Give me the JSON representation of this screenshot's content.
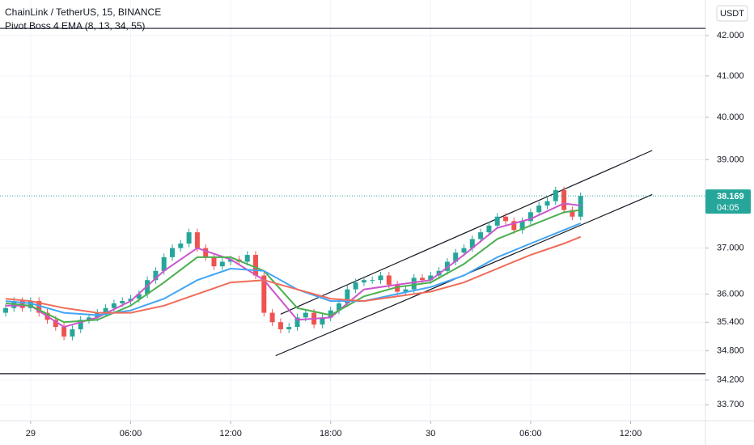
{
  "chart_data": {
    "type": "candlestick",
    "title": "ChainLink / TetherUS, 15, BINANCE",
    "indicator": "Pivot Boss 4 EMA (8, 13, 34, 55)",
    "currency": "USDT",
    "countdown": "04:05",
    "log_scale": true,
    "grid": true,
    "up_color": "#26a69a",
    "down_color": "#ef5350",
    "xlim": [
      -1.84,
      40.49
    ],
    "ylim": [
      33.38,
      42.9
    ],
    "xticks": [
      {
        "value": 0,
        "label": "29"
      },
      {
        "value": 6,
        "label": "06:00"
      },
      {
        "value": 12,
        "label": "12:00"
      },
      {
        "value": 18,
        "label": "18:00"
      },
      {
        "value": 24,
        "label": "30"
      },
      {
        "value": 30,
        "label": "06:00"
      },
      {
        "value": 36,
        "label": "12:00"
      }
    ],
    "yticks": [
      {
        "value": 42,
        "label": "42.000"
      },
      {
        "value": 41,
        "label": "41.000"
      },
      {
        "value": 40,
        "label": "40.000"
      },
      {
        "value": 39,
        "label": "39.000"
      },
      {
        "value": 37,
        "label": "37.000"
      },
      {
        "value": 36,
        "label": "36.000"
      },
      {
        "value": 35.4,
        "label": "35.400"
      },
      {
        "value": 34.8,
        "label": "34.800"
      },
      {
        "value": 34.2,
        "label": "34.200"
      },
      {
        "value": 33.7,
        "label": "33.700"
      }
    ],
    "x": [
      -1.5,
      -1,
      -0.5,
      0,
      0.5,
      1,
      1.5,
      2,
      2.5,
      3,
      3.5,
      4,
      4.5,
      5,
      5.5,
      6,
      6.5,
      7,
      7.5,
      8,
      8.5,
      9,
      9.5,
      10,
      10.5,
      11,
      11.5,
      12,
      12.5,
      13,
      13.5,
      14,
      14.5,
      15,
      15.5,
      16,
      16.5,
      17,
      17.5,
      18,
      18.5,
      19,
      19.5,
      20,
      20.5,
      21,
      21.5,
      22,
      22.5,
      23,
      23.5,
      24,
      24.5,
      25,
      25.5,
      26,
      26.5,
      27,
      27.5,
      28,
      28.5,
      29,
      29.5,
      30,
      30.5,
      31,
      31.5,
      32,
      32.5,
      33
    ],
    "open": [
      35.6,
      35.7,
      35.85,
      35.7,
      35.85,
      35.6,
      35.45,
      35.3,
      35.1,
      35.25,
      35.45,
      35.5,
      35.6,
      35.7,
      35.8,
      35.85,
      35.9,
      36.0,
      36.3,
      36.5,
      36.8,
      37.0,
      37.1,
      37.35,
      37.0,
      36.8,
      36.6,
      36.7,
      36.75,
      36.7,
      36.85,
      36.4,
      35.6,
      35.4,
      35.25,
      35.3,
      35.5,
      35.6,
      35.35,
      35.5,
      35.65,
      35.8,
      36.1,
      36.25,
      36.3,
      36.3,
      36.4,
      36.2,
      36.05,
      36.1,
      36.35,
      36.3,
      36.4,
      36.5,
      36.7,
      36.9,
      37.0,
      37.2,
      37.35,
      37.5,
      37.7,
      37.6,
      37.4,
      37.6,
      37.8,
      37.95,
      38.05,
      38.3,
      37.85,
      37.7
    ],
    "high": [
      35.78,
      35.93,
      35.93,
      35.93,
      35.93,
      35.68,
      35.53,
      35.38,
      35.33,
      35.53,
      35.58,
      35.68,
      35.78,
      35.88,
      35.93,
      35.98,
      36.08,
      36.38,
      36.58,
      36.88,
      37.08,
      37.18,
      37.43,
      37.43,
      37.08,
      36.88,
      36.78,
      36.83,
      36.83,
      36.93,
      36.93,
      36.48,
      35.68,
      35.48,
      35.38,
      35.58,
      35.68,
      35.68,
      35.58,
      35.73,
      35.88,
      36.18,
      36.33,
      36.38,
      36.38,
      36.48,
      36.48,
      36.28,
      36.18,
      36.43,
      36.43,
      36.48,
      36.58,
      36.78,
      36.98,
      37.08,
      37.28,
      37.43,
      37.58,
      37.78,
      37.78,
      37.68,
      37.68,
      37.88,
      38.03,
      38.13,
      38.38,
      38.38,
      37.93,
      38.25
    ],
    "low": [
      35.52,
      35.62,
      35.62,
      35.62,
      35.52,
      35.37,
      35.22,
      35.02,
      35.02,
      35.17,
      35.37,
      35.42,
      35.52,
      35.62,
      35.72,
      35.77,
      35.82,
      35.92,
      36.22,
      36.42,
      36.72,
      36.92,
      37.02,
      36.92,
      36.72,
      36.52,
      36.52,
      36.62,
      36.62,
      36.62,
      36.32,
      35.52,
      35.32,
      35.17,
      35.17,
      35.22,
      35.42,
      35.27,
      35.27,
      35.42,
      35.57,
      35.72,
      36.02,
      36.17,
      36.22,
      36.22,
      36.12,
      35.97,
      35.97,
      36.02,
      36.22,
      36.22,
      36.32,
      36.42,
      36.62,
      36.82,
      36.92,
      37.12,
      37.27,
      37.42,
      37.52,
      37.32,
      37.32,
      37.52,
      37.72,
      37.87,
      37.97,
      37.77,
      37.62,
      37.62
    ],
    "close": [
      35.7,
      35.85,
      35.7,
      35.85,
      35.6,
      35.45,
      35.3,
      35.1,
      35.25,
      35.45,
      35.5,
      35.6,
      35.7,
      35.8,
      35.85,
      35.9,
      36.0,
      36.3,
      36.5,
      36.8,
      37.0,
      37.1,
      37.35,
      37.0,
      36.8,
      36.6,
      36.7,
      36.75,
      36.7,
      36.85,
      36.4,
      35.6,
      35.4,
      35.25,
      35.3,
      35.5,
      35.6,
      35.35,
      35.5,
      35.65,
      35.8,
      36.1,
      36.25,
      36.3,
      36.3,
      36.4,
      36.2,
      36.05,
      36.1,
      36.35,
      36.3,
      36.4,
      36.5,
      36.7,
      36.9,
      37.0,
      37.2,
      37.35,
      37.5,
      37.7,
      37.6,
      37.4,
      37.6,
      37.8,
      37.95,
      38.05,
      38.3,
      37.85,
      37.7,
      38.169
    ],
    "series": [
      {
        "color": "#cc55cc",
        "x": [
          -1.5,
          0,
          2,
          4,
          6,
          8,
          10,
          12,
          14,
          16,
          18,
          20,
          22,
          24,
          26,
          28,
          30,
          32,
          33
        ],
        "values": [
          35.75,
          35.75,
          35.3,
          35.5,
          35.85,
          36.5,
          37.0,
          36.75,
          36.3,
          35.45,
          35.5,
          36.1,
          36.2,
          36.3,
          36.85,
          37.45,
          37.65,
          38.0,
          37.95
        ]
      },
      {
        "color": "#4caf50",
        "x": [
          -1.5,
          0,
          2,
          4,
          6,
          8,
          10,
          12,
          14,
          16,
          18,
          20,
          22,
          24,
          26,
          28,
          30,
          32,
          33
        ],
        "values": [
          35.8,
          35.75,
          35.4,
          35.45,
          35.75,
          36.25,
          36.8,
          36.8,
          36.5,
          35.7,
          35.55,
          35.95,
          36.15,
          36.25,
          36.65,
          37.2,
          37.5,
          37.8,
          37.85
        ]
      },
      {
        "color": "#42a5f5",
        "x": [
          -1.5,
          0,
          2,
          4,
          6,
          8,
          10,
          12,
          14,
          16,
          18,
          20,
          22,
          24,
          26,
          28,
          30,
          32,
          33
        ],
        "values": [
          35.85,
          35.8,
          35.6,
          35.55,
          35.65,
          35.9,
          36.3,
          36.55,
          36.5,
          36.1,
          35.85,
          35.85,
          36.0,
          36.15,
          36.4,
          36.8,
          37.1,
          37.4,
          37.55
        ]
      },
      {
        "color": "#ef6c5a",
        "x": [
          -1.5,
          0,
          2,
          4,
          6,
          8,
          10,
          12,
          14,
          16,
          18,
          20,
          22,
          24,
          26,
          28,
          30,
          32,
          33
        ],
        "values": [
          35.9,
          35.85,
          35.7,
          35.6,
          35.6,
          35.75,
          36.0,
          36.25,
          36.3,
          36.1,
          35.9,
          35.85,
          35.95,
          36.05,
          36.25,
          36.55,
          36.85,
          37.1,
          37.25
        ]
      }
    ],
    "trendlines": [
      {
        "x": [
          15,
          37.3
        ],
        "values": [
          35.57,
          39.22
        ]
      },
      {
        "x": [
          14.7,
          37.3
        ],
        "values": [
          34.7,
          38.2
        ]
      }
    ],
    "hlines": [
      42.18,
      34.33
    ]
  }
}
